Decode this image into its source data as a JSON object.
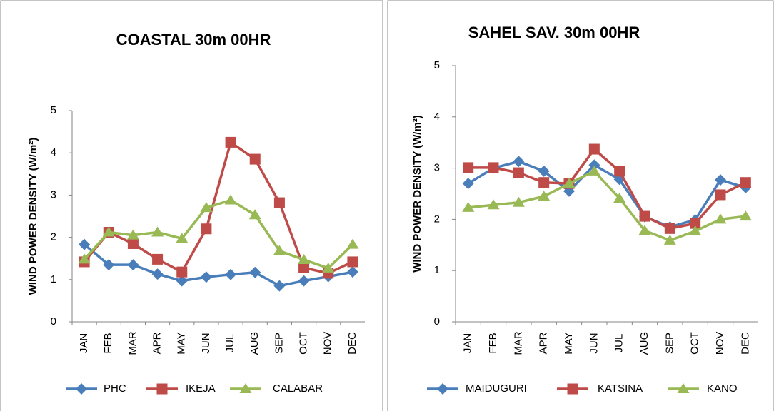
{
  "chart_data": [
    {
      "type": "line",
      "title": "COASTAL 30m 00HR",
      "y_label": "WIND POWER DENSITY (W/m²)",
      "categories": [
        "JAN",
        "FEB",
        "MAR",
        "APR",
        "MAY",
        "JUN",
        "JUL",
        "AUG",
        "SEP",
        "OCT",
        "NOV",
        "DEC"
      ],
      "ylim": [
        0,
        5
      ],
      "yticks": [
        0,
        1,
        2,
        3,
        4,
        5
      ],
      "series": [
        {
          "name": "PHC",
          "color": "#4a7ebb",
          "values": [
            1.83,
            1.35,
            1.35,
            1.13,
            0.97,
            1.06,
            1.12,
            1.17,
            0.85,
            0.97,
            1.07,
            1.18
          ]
        },
        {
          "name": "IKEJA",
          "color": "#be4b48",
          "values": [
            1.42,
            2.12,
            1.85,
            1.48,
            1.18,
            2.2,
            4.25,
            3.85,
            2.82,
            1.28,
            1.15,
            1.42
          ]
        },
        {
          "name": "CALABAR",
          "color": "#98b954",
          "values": [
            1.48,
            2.12,
            2.05,
            2.12,
            1.97,
            2.7,
            2.88,
            2.53,
            1.68,
            1.47,
            1.27,
            1.83
          ]
        }
      ]
    },
    {
      "type": "line",
      "title": "SAHEL SAV. 30m 00HR",
      "y_label": "WIND POWER DENSITY (W/m²)",
      "categories": [
        "JAN",
        "FEB",
        "MAR",
        "APR",
        "MAY",
        "JUN",
        "JUL",
        "AUG",
        "SEP",
        "OCT",
        "NOV",
        "DEC"
      ],
      "ylim": [
        0,
        5
      ],
      "yticks": [
        0,
        1,
        2,
        3,
        4,
        5
      ],
      "series": [
        {
          "name": "MAIDUGURI",
          "color": "#4a7ebb",
          "values": [
            2.7,
            3.0,
            3.13,
            2.94,
            2.55,
            3.06,
            2.78,
            2.05,
            1.85,
            1.99,
            2.77,
            2.62
          ]
        },
        {
          "name": "KATSINA",
          "color": "#be4b48",
          "values": [
            3.01,
            3.01,
            2.91,
            2.72,
            2.7,
            3.37,
            2.94,
            2.06,
            1.82,
            1.92,
            2.48,
            2.72
          ]
        },
        {
          "name": "KANO",
          "color": "#98b954",
          "values": [
            2.23,
            2.28,
            2.33,
            2.45,
            2.7,
            2.94,
            2.41,
            1.78,
            1.59,
            1.77,
            2.0,
            2.06
          ]
        }
      ]
    }
  ]
}
